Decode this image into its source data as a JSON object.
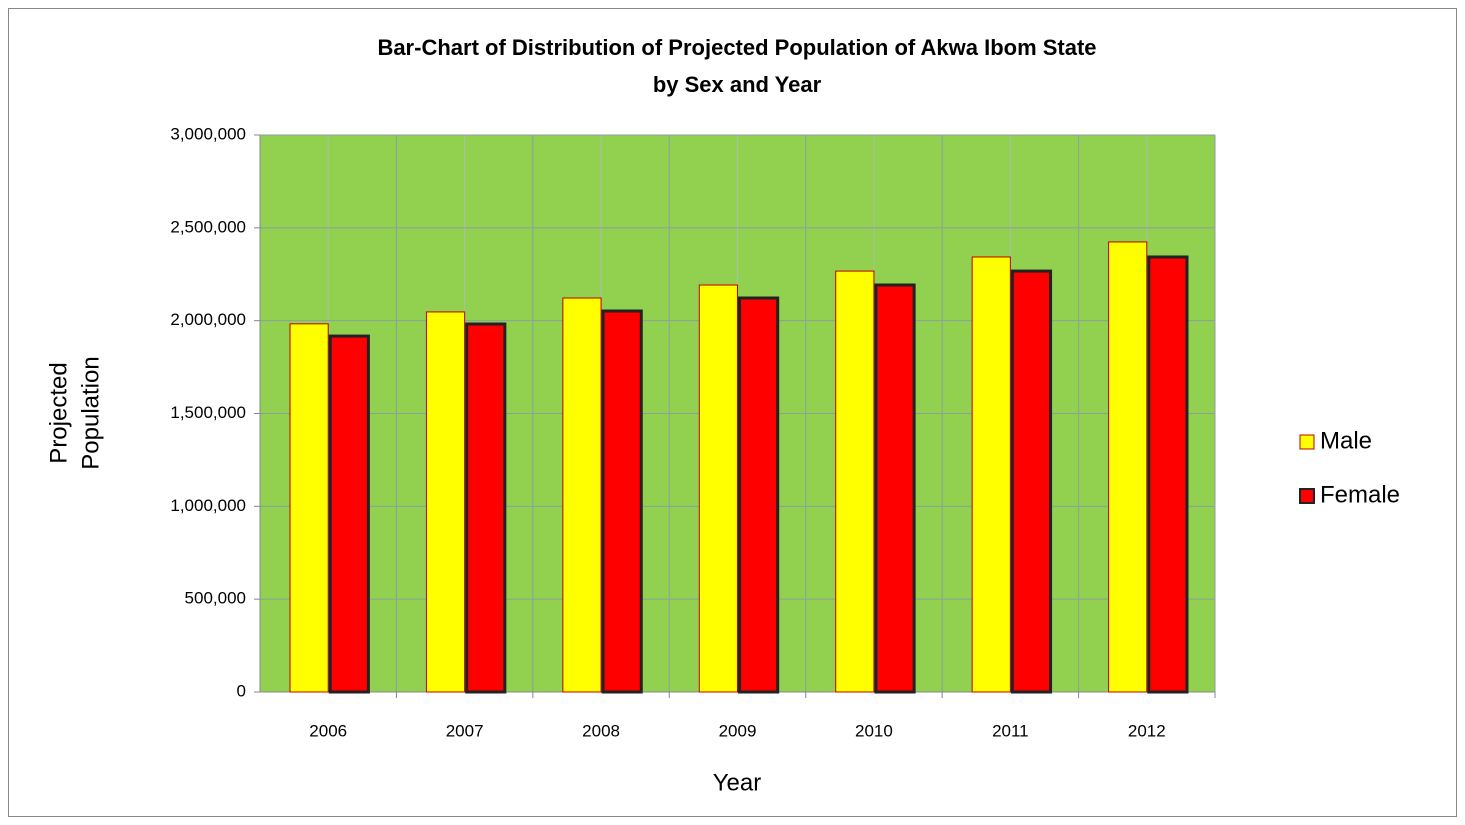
{
  "chart_data": {
    "type": "bar",
    "title": [
      "Bar-Chart of  Distribution of Projected Population of Akwa Ibom State",
      "by Sex and Year"
    ],
    "x_label": "Year",
    "y_label": [
      "Projected",
      "Population"
    ],
    "categories": [
      "2006",
      "2007",
      "2008",
      "2009",
      "2010",
      "2011",
      "2012"
    ],
    "series": [
      {
        "name": "Male",
        "color": "#ffff00",
        "values": [
          1983000,
          2047000,
          2122000,
          2192000,
          2267000,
          2343000,
          2424000
        ]
      },
      {
        "name": "Female",
        "color": "#ff0000",
        "values": [
          1917000,
          1982000,
          2052000,
          2122000,
          2192000,
          2267000,
          2343000
        ]
      }
    ],
    "ylim": [
      0,
      3000000
    ],
    "yticks": [
      0,
      {
        "value": 500000,
        "label": "500,000"
      },
      {
        "value": 1000000,
        "label": "1,000,000"
      },
      {
        "value": 1500000,
        "label": "1,500,000"
      },
      {
        "value": 2000000,
        "label": "2,000,000"
      },
      {
        "value": 2500000,
        "label": "2,500,000"
      },
      {
        "value": 3000000,
        "label": "3,000,000"
      }
    ],
    "grid": true,
    "plot_background": "#92d050",
    "legend": "right"
  }
}
